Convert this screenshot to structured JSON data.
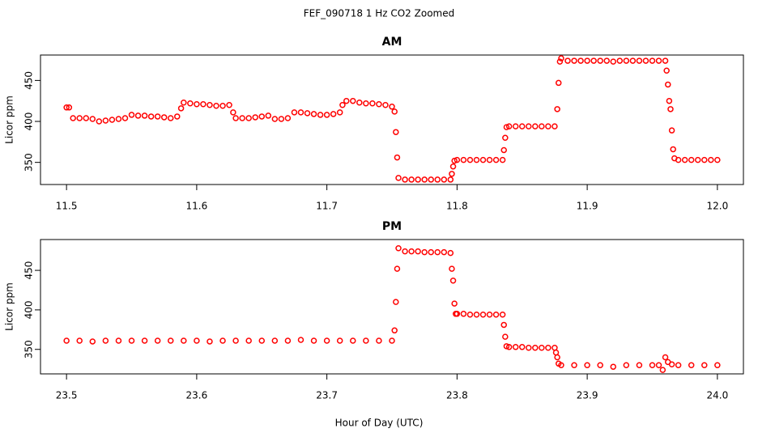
{
  "title": "FEF_090718  1 Hz CO2 Zoomed",
  "x_label": "Hour of Day (UTC)",
  "chart_data": [
    {
      "type": "scatter",
      "title": "AM",
      "y_label": "Licor ppm",
      "color": "#ff0000",
      "xlim": [
        11.48,
        12.02
      ],
      "ylim": [
        323,
        481
      ],
      "xticks": [
        11.5,
        11.6,
        11.7,
        11.8,
        11.9,
        {
          "value": 12,
          "label": "12.0"
        }
      ],
      "yticks": [
        350,
        400,
        450
      ],
      "x": [
        11.5,
        11.502,
        11.505,
        11.51,
        11.515,
        11.52,
        11.525,
        11.53,
        11.535,
        11.54,
        11.545,
        11.55,
        11.555,
        11.56,
        11.565,
        11.57,
        11.575,
        11.58,
        11.585,
        11.588,
        11.59,
        11.595,
        11.6,
        11.605,
        11.61,
        11.615,
        11.62,
        11.625,
        11.628,
        11.63,
        11.635,
        11.64,
        11.645,
        11.65,
        11.655,
        11.66,
        11.665,
        11.67,
        11.675,
        11.68,
        11.685,
        11.69,
        11.695,
        11.7,
        11.705,
        11.71,
        11.712,
        11.715,
        11.72,
        11.725,
        11.73,
        11.735,
        11.74,
        11.745,
        11.75,
        11.752,
        11.753,
        11.754,
        11.755,
        11.76,
        11.765,
        11.77,
        11.775,
        11.78,
        11.785,
        11.79,
        11.795,
        11.796,
        11.797,
        11.798,
        11.8,
        11.805,
        11.81,
        11.815,
        11.82,
        11.825,
        11.83,
        11.835,
        11.836,
        11.837,
        11.838,
        11.84,
        11.845,
        11.85,
        11.855,
        11.86,
        11.865,
        11.87,
        11.875,
        11.877,
        11.878,
        11.879,
        11.88,
        11.885,
        11.89,
        11.895,
        11.9,
        11.905,
        11.91,
        11.915,
        11.92,
        11.925,
        11.93,
        11.935,
        11.94,
        11.945,
        11.95,
        11.955,
        11.96,
        11.961,
        11.962,
        11.963,
        11.964,
        11.965,
        11.966,
        11.967,
        11.97,
        11.975,
        11.98,
        11.985,
        11.99,
        11.995,
        12.0
      ],
      "values": [
        417,
        417,
        404,
        404,
        404,
        403,
        400,
        401,
        402,
        403,
        404,
        408,
        407,
        407,
        406,
        406,
        405,
        404,
        406,
        416,
        423,
        422,
        421,
        421,
        420,
        419,
        419,
        420,
        411,
        404,
        404,
        404,
        405,
        406,
        407,
        403,
        403,
        404,
        411,
        411,
        410,
        409,
        408,
        408,
        409,
        411,
        420,
        425,
        425,
        423,
        422,
        422,
        421,
        420,
        418,
        412,
        387,
        356,
        331,
        329,
        329,
        329,
        329,
        329,
        329,
        329,
        329,
        336,
        345,
        352,
        353,
        353,
        353,
        353,
        353,
        353,
        353,
        353,
        365,
        380,
        393,
        394,
        394,
        394,
        394,
        394,
        394,
        394,
        394,
        415,
        447,
        473,
        477,
        474,
        474,
        474,
        474,
        474,
        474,
        474,
        473,
        474,
        474,
        474,
        474,
        474,
        474,
        474,
        474,
        462,
        445,
        425,
        415,
        389,
        366,
        355,
        353,
        353,
        353,
        353,
        353,
        353,
        353
      ]
    },
    {
      "type": "scatter",
      "title": "PM",
      "y_label": "Licor ppm",
      "color": "#ff0000",
      "xlim": [
        23.48,
        24.02
      ],
      "ylim": [
        319,
        489
      ],
      "xticks": [
        23.5,
        23.6,
        23.7,
        23.8,
        23.9,
        {
          "value": 24,
          "label": "24.0"
        }
      ],
      "yticks": [
        350,
        400,
        450
      ],
      "x": [
        23.5,
        23.51,
        23.52,
        23.53,
        23.54,
        23.55,
        23.56,
        23.57,
        23.58,
        23.59,
        23.6,
        23.61,
        23.62,
        23.63,
        23.64,
        23.65,
        23.66,
        23.67,
        23.68,
        23.69,
        23.7,
        23.71,
        23.72,
        23.73,
        23.74,
        23.75,
        23.752,
        23.753,
        23.754,
        23.755,
        23.76,
        23.765,
        23.77,
        23.775,
        23.78,
        23.785,
        23.79,
        23.795,
        23.796,
        23.797,
        23.798,
        23.799,
        23.8,
        23.805,
        23.81,
        23.815,
        23.82,
        23.825,
        23.83,
        23.835,
        23.836,
        23.837,
        23.838,
        23.84,
        23.845,
        23.85,
        23.855,
        23.86,
        23.865,
        23.87,
        23.875,
        23.876,
        23.877,
        23.878,
        23.88,
        23.89,
        23.9,
        23.91,
        23.92,
        23.93,
        23.94,
        23.95,
        23.955,
        23.958,
        23.96,
        23.962,
        23.965,
        23.97,
        23.98,
        23.99,
        24.0
      ],
      "values": [
        361,
        361,
        360,
        361,
        361,
        361,
        361,
        361,
        361,
        361,
        361,
        360,
        361,
        361,
        361,
        361,
        361,
        361,
        362,
        361,
        361,
        361,
        361,
        361,
        361,
        361,
        374,
        410,
        452,
        478,
        474,
        474,
        474,
        473,
        473,
        473,
        473,
        472,
        452,
        437,
        408,
        395,
        395,
        395,
        394,
        394,
        394,
        394,
        394,
        394,
        381,
        366,
        354,
        353,
        353,
        353,
        352,
        352,
        352,
        352,
        352,
        346,
        340,
        332,
        330,
        330,
        330,
        330,
        328,
        330,
        330,
        330,
        330,
        324,
        340,
        334,
        331,
        330,
        330,
        330,
        330
      ]
    }
  ]
}
